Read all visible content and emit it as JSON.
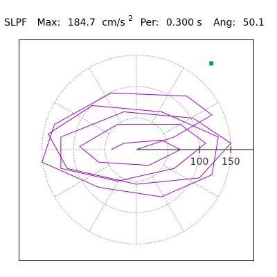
{
  "chart_data": {
    "type": "line",
    "title": {
      "label": "SLPF",
      "max_label": "Max:",
      "max_value": "184.7",
      "max_unit": "cm/s",
      "max_exponent": "2",
      "per_label": "Per:",
      "per_value": "0.300 s",
      "ang_label": "Ang:",
      "ang_value": "50.1"
    },
    "polar_grid": {
      "radii": [
        50,
        100,
        150
      ],
      "spoke_angles_deg": [
        0,
        30,
        60,
        90,
        120,
        150,
        180,
        210,
        240,
        270,
        300,
        330
      ],
      "grid_color": "#808080"
    },
    "axis": {
      "tick_labels": [
        "100",
        "150"
      ],
      "tick_values": [
        100,
        150
      ],
      "range_max": 200
    },
    "series": [
      {
        "color": "#9900cc",
        "x": [
          0,
          60,
          120,
          80,
          -40,
          -130,
          -150,
          -60,
          40,
          120,
          130,
          40,
          -70,
          -140,
          -110,
          0,
          100,
          150,
          90,
          -20,
          -120,
          -120,
          -30,
          60,
          110,
          70,
          -30,
          -90,
          -60,
          20,
          70,
          40,
          -20,
          -40
        ],
        "y": [
          0,
          20,
          55,
          85,
          90,
          40,
          -20,
          -60,
          -75,
          -40,
          20,
          60,
          70,
          25,
          -30,
          -55,
          -45,
          10,
          50,
          60,
          20,
          -30,
          -50,
          -30,
          10,
          40,
          40,
          5,
          -20,
          -25,
          0,
          15,
          10,
          0
        ]
      }
    ],
    "end_marker": {
      "x": 119,
      "y": 137,
      "color": "#009980"
    }
  }
}
